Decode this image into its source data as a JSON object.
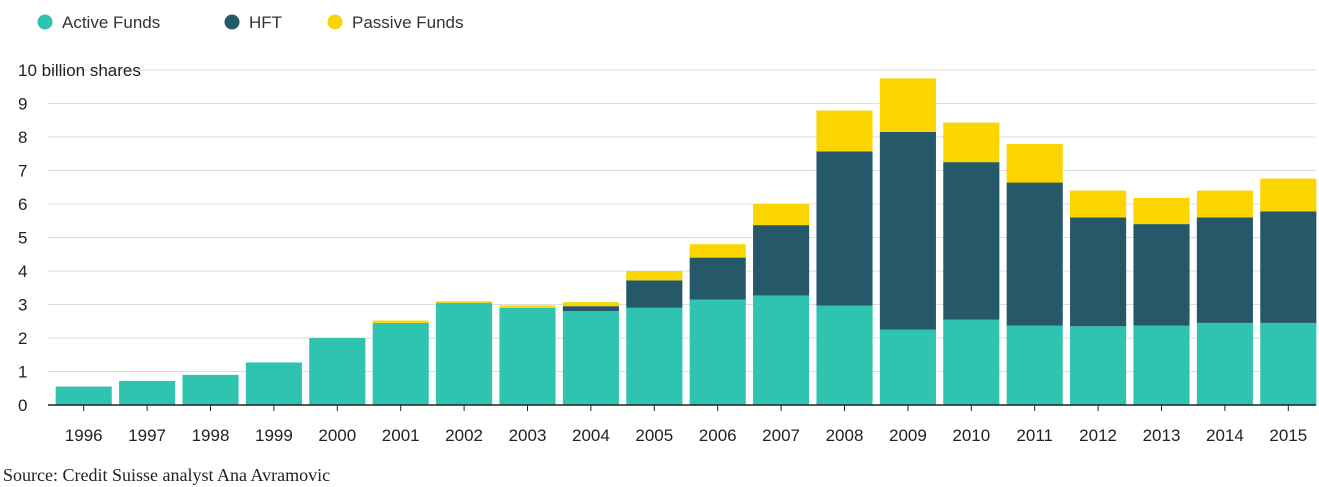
{
  "chart_data": {
    "type": "bar",
    "stacked": true,
    "title": "",
    "ylabel": "10 billion shares",
    "xlabel": "",
    "ylim": [
      0,
      10
    ],
    "yticks": [
      0,
      1,
      2,
      3,
      4,
      5,
      6,
      7,
      8,
      9,
      10
    ],
    "ytick_labels": [
      "0",
      "1",
      "2",
      "3",
      "4",
      "5",
      "6",
      "7",
      "8",
      "9",
      "10 billion shares"
    ],
    "grid": true,
    "legend_position": "top-left",
    "categories": [
      "1996",
      "1997",
      "1998",
      "1999",
      "2000",
      "2001",
      "2002",
      "2003",
      "2004",
      "2005",
      "2006",
      "2007",
      "2008",
      "2009",
      "2010",
      "2011",
      "2012",
      "2013",
      "2014",
      "2015"
    ],
    "series": [
      {
        "name": "Active Funds",
        "color": "#2ec4b0",
        "values": [
          0.55,
          0.72,
          0.9,
          1.27,
          2.0,
          2.45,
          3.05,
          2.9,
          2.8,
          2.9,
          3.15,
          3.27,
          2.97,
          2.25,
          2.55,
          2.37,
          2.35,
          2.37,
          2.45,
          2.45
        ]
      },
      {
        "name": "HFT",
        "color": "#255869",
        "values": [
          0,
          0,
          0,
          0,
          0,
          0,
          0,
          0,
          0.15,
          0.82,
          1.25,
          2.1,
          4.6,
          5.9,
          4.7,
          4.27,
          3.25,
          3.03,
          3.15,
          3.33
        ]
      },
      {
        "name": "Passive Funds",
        "color": "#fbd500",
        "values": [
          0,
          0,
          0,
          0,
          0,
          0.07,
          0.05,
          0.07,
          0.12,
          0.28,
          0.4,
          0.63,
          1.22,
          1.6,
          1.18,
          1.15,
          0.8,
          0.78,
          0.8,
          0.98
        ]
      }
    ]
  },
  "source": "Source: Credit Suisse analyst Ana Avramovic"
}
